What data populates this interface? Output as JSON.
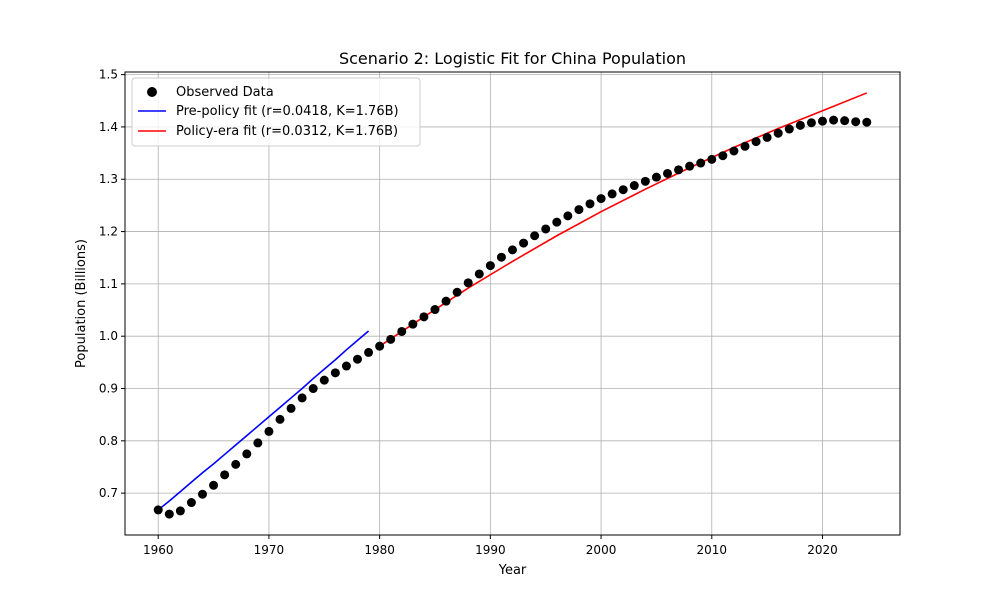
{
  "chart_data": {
    "type": "scatter",
    "title": "Scenario 2: Logistic Fit for China Population",
    "xlabel": "Year",
    "ylabel": "Population (Billions)",
    "xlim": [
      1957,
      2027
    ],
    "ylim": [
      0.62,
      1.505
    ],
    "x_ticks": [
      1960,
      1970,
      1980,
      1990,
      2000,
      2010,
      2020
    ],
    "y_ticks": [
      0.7,
      0.8,
      0.9,
      1.0,
      1.1,
      1.2,
      1.3,
      1.4,
      1.5
    ],
    "x_tick_labels": [
      "1960",
      "1970",
      "1980",
      "1990",
      "2000",
      "2010",
      "2020"
    ],
    "y_tick_labels": [
      "0.7",
      "0.8",
      "0.9",
      "1.0",
      "1.1",
      "1.2",
      "1.3",
      "1.4",
      "1.5"
    ],
    "grid": true,
    "legend_position": "top-left",
    "observed": {
      "name": "Observed Data",
      "color": "#000000",
      "x": [
        1960,
        1961,
        1962,
        1963,
        1964,
        1965,
        1966,
        1967,
        1968,
        1969,
        1970,
        1971,
        1972,
        1973,
        1974,
        1975,
        1976,
        1977,
        1978,
        1979,
        1980,
        1981,
        1982,
        1983,
        1984,
        1985,
        1986,
        1987,
        1988,
        1989,
        1990,
        1991,
        1992,
        1993,
        1994,
        1995,
        1996,
        1997,
        1998,
        1999,
        2000,
        2001,
        2002,
        2003,
        2004,
        2005,
        2006,
        2007,
        2008,
        2009,
        2010,
        2011,
        2012,
        2013,
        2014,
        2015,
        2016,
        2017,
        2018,
        2019,
        2020,
        2021,
        2022,
        2023,
        2024
      ],
      "y": [
        0.668,
        0.66,
        0.666,
        0.682,
        0.698,
        0.715,
        0.735,
        0.755,
        0.775,
        0.796,
        0.818,
        0.841,
        0.862,
        0.882,
        0.9,
        0.916,
        0.93,
        0.943,
        0.956,
        0.969,
        0.981,
        0.994,
        1.009,
        1.023,
        1.037,
        1.051,
        1.067,
        1.084,
        1.102,
        1.119,
        1.135,
        1.151,
        1.165,
        1.178,
        1.192,
        1.205,
        1.218,
        1.23,
        1.242,
        1.253,
        1.263,
        1.272,
        1.28,
        1.288,
        1.296,
        1.304,
        1.311,
        1.318,
        1.325,
        1.331,
        1.338,
        1.345,
        1.354,
        1.363,
        1.372,
        1.38,
        1.388,
        1.396,
        1.403,
        1.408,
        1.411,
        1.413,
        1.412,
        1.41,
        1.409
      ]
    },
    "series": [
      {
        "name": "Pre-policy fit (r=0.0418, K=1.76B)",
        "color": "#0000ff",
        "x": [
          1960,
          1961,
          1962,
          1963,
          1964,
          1965,
          1966,
          1967,
          1968,
          1969,
          1970,
          1971,
          1972,
          1973,
          1974,
          1975,
          1976,
          1977,
          1978,
          1979
        ],
        "y": [
          0.668,
          0.685,
          0.703,
          0.721,
          0.739,
          0.756,
          0.774,
          0.792,
          0.81,
          0.828,
          0.846,
          0.864,
          0.882,
          0.9,
          0.919,
          0.937,
          0.955,
          0.974,
          0.992,
          1.01
        ]
      },
      {
        "name": "Policy-era fit (r=0.0312, K=1.76B)",
        "color": "#ff0000",
        "x": [
          1980,
          1984,
          1988,
          1992,
          1996,
          2000,
          2004,
          2008,
          2012,
          2016,
          2020,
          2024
        ],
        "y": [
          0.981,
          1.037,
          1.092,
          1.143,
          1.192,
          1.238,
          1.281,
          1.322,
          1.361,
          1.397,
          1.431,
          1.465
        ]
      }
    ]
  }
}
